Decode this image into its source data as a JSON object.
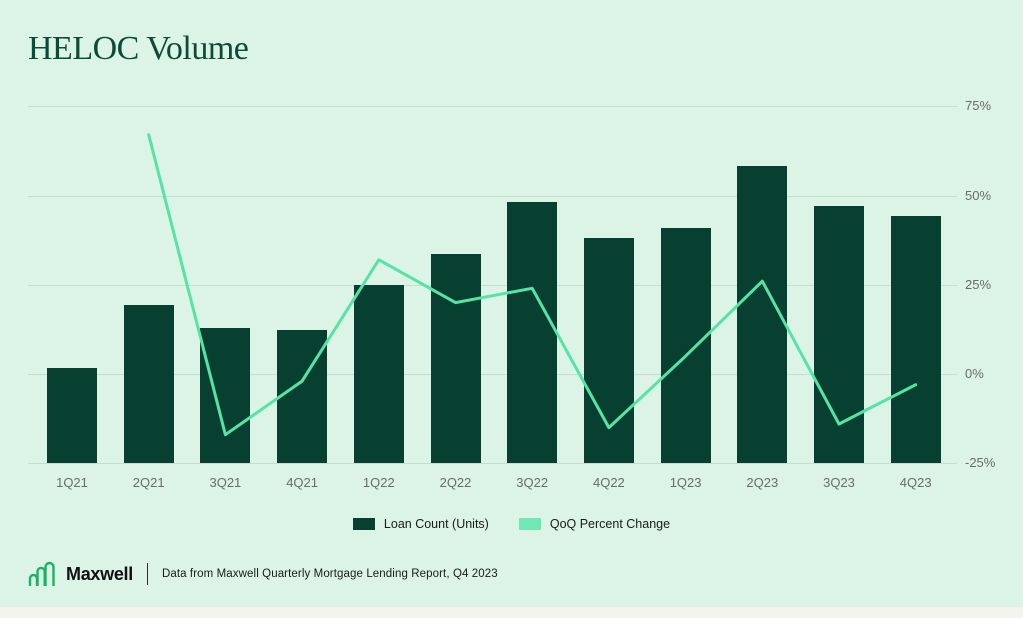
{
  "title": "HELOC Volume",
  "colors": {
    "background": "#dbf4e6",
    "bottom_strip": "#f4f3ed",
    "bar": "#074031",
    "line": "#57e3a5",
    "gridline": "#c4ddd0",
    "title_text": "#0b4b37",
    "axis_text": "#686d6a",
    "body_text": "#1b1b19",
    "logo_green": "#19b266",
    "legend_line_swatch": "#6fe9b3"
  },
  "chart_data": {
    "type": "bar+line combo",
    "title": "HELOC Volume",
    "categories": [
      "1Q21",
      "2Q21",
      "3Q21",
      "4Q21",
      "1Q22",
      "2Q22",
      "3Q22",
      "4Q22",
      "1Q23",
      "2Q23",
      "3Q23",
      "4Q23"
    ],
    "series": [
      {
        "name": "Loan Count (Units)",
        "type": "bar",
        "values": [
          95,
          158,
          135,
          133,
          178,
          209,
          261,
          225,
          235,
          297,
          257,
          247
        ],
        "note": "left value axis is unlabeled in the figure; values are relative units estimated from bar heights"
      },
      {
        "name": "QoQ Percent Change",
        "type": "line",
        "unit": "%",
        "values": [
          null,
          67,
          -17,
          -2,
          32,
          20,
          24,
          -15,
          5,
          26,
          -14,
          -3
        ]
      }
    ],
    "right_axis": {
      "ticks": [
        "75%",
        "50%",
        "25%",
        "0%",
        "-25%"
      ],
      "values": [
        75,
        50,
        25,
        0,
        -25
      ],
      "unit": "%",
      "range": [
        -25,
        75
      ]
    },
    "grid": "horizontal gridlines on",
    "legend_position": "bottom-center"
  },
  "legend": {
    "items": [
      {
        "label": "Loan Count (Units)",
        "series": "bar"
      },
      {
        "label": "QoQ Percent Change",
        "series": "line"
      }
    ]
  },
  "footer": {
    "brand": "Maxwell",
    "caption": "Data from Maxwell Quarterly Mortgage Lending Report, Q4 2023"
  }
}
